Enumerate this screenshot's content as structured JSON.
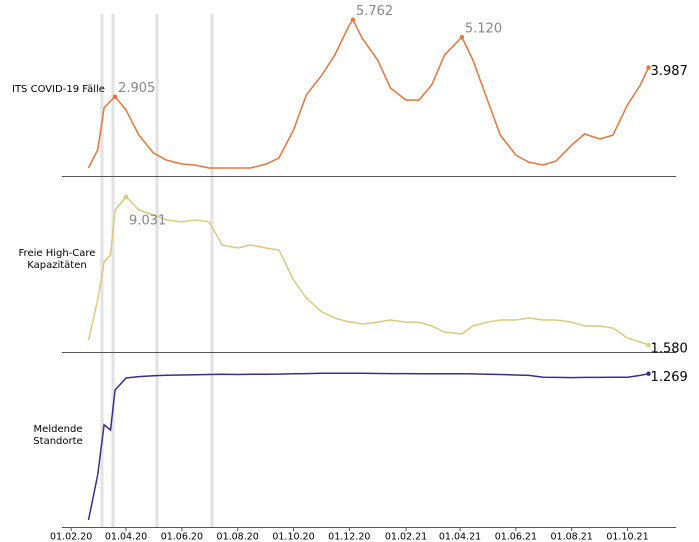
{
  "chart_data": {
    "type": "line",
    "x": [
      "20.02.20",
      "01.03.20",
      "08.03.20",
      "15.03.20",
      "20.03.20",
      "01.04.20",
      "15.04.20",
      "01.05.20",
      "15.05.20",
      "01.06.20",
      "15.06.20",
      "01.07.20",
      "15.07.20",
      "01.08.20",
      "15.08.20",
      "01.09.20",
      "15.09.20",
      "01.10.20",
      "15.10.20",
      "01.11.20",
      "15.11.20",
      "01.12.20",
      "05.12.20",
      "15.12.20",
      "01.01.21",
      "15.01.21",
      "01.02.21",
      "15.02.21",
      "01.03.21",
      "15.03.21",
      "03.04.21",
      "15.04.21",
      "01.05.21",
      "15.05.21",
      "01.06.21",
      "15.06.21",
      "01.07.21",
      "15.07.21",
      "01.08.21",
      "15.08.21",
      "01.09.21",
      "15.09.21",
      "01.10.21",
      "15.10.21",
      "24.10.21"
    ],
    "xlim": [
      "22.01.20",
      "23.11.21"
    ],
    "xticks": [
      "01.02.20",
      "01.04.20",
      "01.06.20",
      "01.08.20",
      "01.10.20",
      "01.12.20",
      "01.02.21",
      "01.04.21",
      "01.06.21",
      "01.08.21",
      "01.10.21"
    ],
    "series": [
      {
        "name": "ITS COVID-19 Fälle",
        "color": "#e8743b",
        "ylim": [
          0,
          6000
        ],
        "values": [
          260,
          930,
          2490,
          2745,
          2905,
          2410,
          1480,
          815,
          555,
          410,
          370,
          260,
          260,
          260,
          260,
          410,
          630,
          1670,
          2970,
          3710,
          4450,
          5565,
          5762,
          5080,
          4265,
          3230,
          2780,
          2780,
          3340,
          4450,
          5120,
          4265,
          2780,
          1480,
          740,
          480,
          370,
          520,
          1110,
          1520,
          1335,
          1480,
          2600,
          3340,
          3987
        ],
        "value_labels": [
          null,
          null,
          null,
          null,
          "2.905",
          null,
          null,
          null,
          null,
          null,
          null,
          null,
          null,
          null,
          null,
          null,
          null,
          null,
          null,
          null,
          null,
          null,
          "5.762",
          null,
          null,
          null,
          null,
          null,
          null,
          null,
          "5.120",
          null,
          null,
          null,
          null,
          null,
          null,
          null,
          null,
          null,
          null,
          null,
          null,
          null,
          "3.987"
        ]
      },
      {
        "name": "Freie High-Care Kapazitäten",
        "color": "#dcc97a",
        "ylim": [
          1300,
          9400
        ],
        "values": [
          1830,
          3845,
          5755,
          6110,
          8370,
          9031,
          8370,
          8120,
          7870,
          7770,
          7870,
          7770,
          6610,
          6460,
          6610,
          6460,
          6360,
          4850,
          3945,
          3240,
          2940,
          2735,
          2735,
          2635,
          2735,
          2840,
          2735,
          2735,
          2535,
          2235,
          2135,
          2535,
          2735,
          2840,
          2840,
          2940,
          2840,
          2840,
          2735,
          2535,
          2535,
          2435,
          1930,
          1730,
          1580
        ],
        "value_labels": [
          null,
          null,
          null,
          null,
          null,
          "9.031",
          null,
          null,
          null,
          null,
          null,
          null,
          null,
          null,
          null,
          null,
          null,
          null,
          null,
          null,
          null,
          null,
          null,
          null,
          null,
          null,
          null,
          null,
          null,
          null,
          null,
          null,
          null,
          null,
          null,
          null,
          null,
          null,
          null,
          null,
          null,
          null,
          null,
          null,
          "1.580"
        ]
      },
      {
        "name": "Meldende Standorte",
        "color": "#3a2d8f",
        "ylim": [
          0,
          1300
        ],
        "values": [
          42,
          420,
          840,
          797,
          1132,
          1233,
          1245,
          1252,
          1256,
          1258,
          1260,
          1262,
          1264,
          1262,
          1264,
          1265,
          1266,
          1268,
          1270,
          1272,
          1272,
          1273,
          1273,
          1272,
          1271,
          1270,
          1270,
          1269,
          1268,
          1268,
          1268,
          1267,
          1265,
          1262,
          1258,
          1255,
          1240,
          1238,
          1236,
          1238,
          1238,
          1239,
          1240,
          1255,
          1269
        ],
        "value_labels": [
          null,
          null,
          null,
          null,
          null,
          null,
          null,
          null,
          null,
          null,
          null,
          null,
          null,
          null,
          null,
          null,
          null,
          null,
          null,
          null,
          null,
          null,
          null,
          null,
          null,
          null,
          null,
          null,
          null,
          null,
          null,
          null,
          null,
          null,
          null,
          null,
          null,
          null,
          null,
          null,
          null,
          null,
          null,
          null,
          "1.269"
        ]
      }
    ]
  }
}
